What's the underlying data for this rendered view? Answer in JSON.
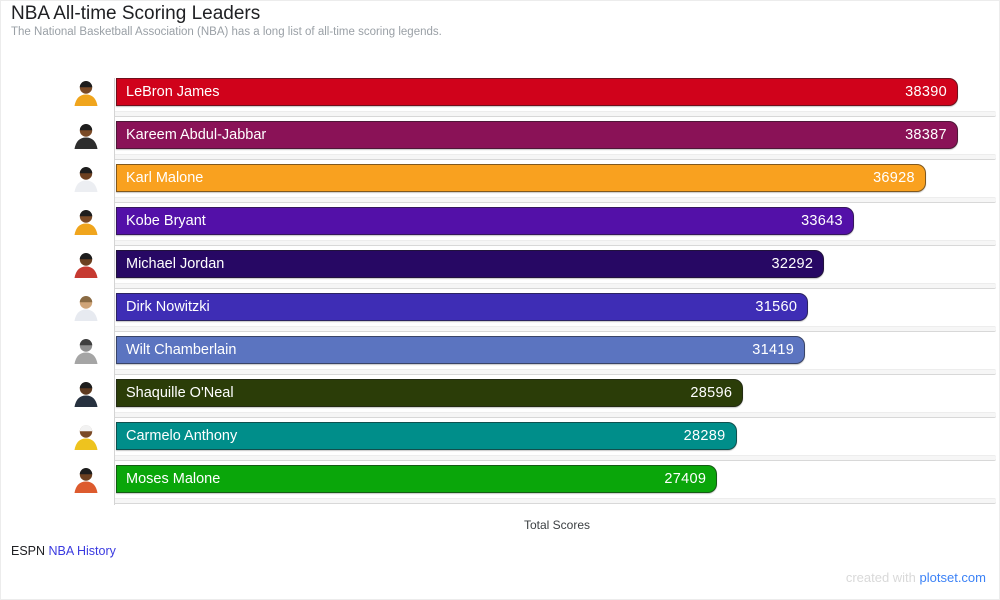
{
  "header": {
    "title": "NBA All-time Scoring Leaders",
    "subtitle": "The National Basketball Association (NBA) has a long list of all-time scoring legends."
  },
  "chart_data": {
    "type": "bar",
    "orientation": "horizontal",
    "title": "NBA All-time Scoring Leaders",
    "xlabel": "Total Scores",
    "xlim": [
      0,
      38390
    ],
    "grid": "row-underlines",
    "legend": "none",
    "value_labels": "inside-end",
    "category_labels": "inside-start",
    "label_color": "#ffffff",
    "categories": [
      "LeBron James",
      "Kareem Abdul-Jabbar",
      "Karl Malone",
      "Kobe Bryant",
      "Michael Jordan",
      "Dirk Nowitzki",
      "Wilt Chamberlain",
      "Shaquille O'Neal",
      "Carmelo Anthony",
      "Moses Malone"
    ],
    "values": [
      38390,
      38387,
      36928,
      33643,
      32292,
      31560,
      31419,
      28596,
      28289,
      27409
    ],
    "bar_colors": [
      "#d0021b",
      "#8a1257",
      "#f9a11f",
      "#5310a8",
      "#270864",
      "#3e2db5",
      "#5b74c0",
      "#2b3d08",
      "#008e8a",
      "#0aa60a"
    ],
    "avatars": [
      {
        "skin": "#7a4a26",
        "hair": "#1d1d1d",
        "jersey": "#f0a51d"
      },
      {
        "skin": "#7a4a26",
        "hair": "#1d1d1d",
        "jersey": "#2e2e2e"
      },
      {
        "skin": "#6d4020",
        "hair": "#1d1d1d",
        "jersey": "#eceef2"
      },
      {
        "skin": "#7a4a26",
        "hair": "#1d1d1d",
        "jersey": "#f0a51d"
      },
      {
        "skin": "#6d4020",
        "hair": "#1d1d1d",
        "jersey": "#c63a31"
      },
      {
        "skin": "#cfa478",
        "hair": "#8a6b44",
        "jersey": "#e7eaf0"
      },
      {
        "skin": "#8f8f8f",
        "hair": "#3f3f3f",
        "jersey": "#a5a5a5"
      },
      {
        "skin": "#5e3a20",
        "hair": "#1d1d1d",
        "jersey": "#27313f"
      },
      {
        "skin": "#7a4a26",
        "hair": "#f2f2f2",
        "jersey": "#eec31e"
      },
      {
        "skin": "#6d4020",
        "hair": "#1d1d1d",
        "jersey": "#dd5b2e"
      }
    ]
  },
  "footer": {
    "source_text": "ESPN",
    "source_link": "NBA History",
    "credit_text": "created with",
    "credit_link": "plotset.com"
  },
  "colors": {
    "title_text": "#202124",
    "subtitle_text": "#9aa0a6",
    "axis_label_text": "#3c4043",
    "source_link_blue": "#3a3ae0",
    "credit_link_blue": "#3c82f6",
    "credit_muted": "#d9d9d9",
    "gridline": "#d8d8d8"
  }
}
